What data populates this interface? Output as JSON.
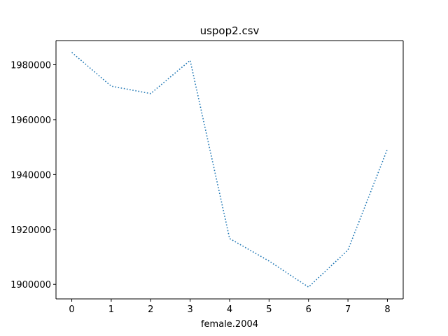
{
  "chart_data": {
    "type": "line",
    "title": "uspop2.csv",
    "xlabel": "female.2004",
    "ylabel": "",
    "x": [
      0,
      1,
      2,
      3,
      4,
      5,
      6,
      7,
      8
    ],
    "series": [
      {
        "values": [
          1984500,
          1972200,
          1969500,
          1981600,
          1916700,
          1908500,
          1899000,
          1912500,
          1949300
        ],
        "color": "#1f77b4",
        "line_style": "dotted"
      }
    ],
    "x_ticks": [
      "0",
      "1",
      "2",
      "3",
      "4",
      "5",
      "6",
      "7",
      "8"
    ],
    "y_ticks": [
      "1900000",
      "1920000",
      "1940000",
      "1960000",
      "1980000"
    ],
    "y_tick_values": [
      1900000,
      1920000,
      1940000,
      1960000,
      1980000
    ],
    "xlim": [
      -0.4,
      8.4
    ],
    "ylim": [
      1894700,
      1988800
    ],
    "grid": false,
    "legend": "none"
  }
}
